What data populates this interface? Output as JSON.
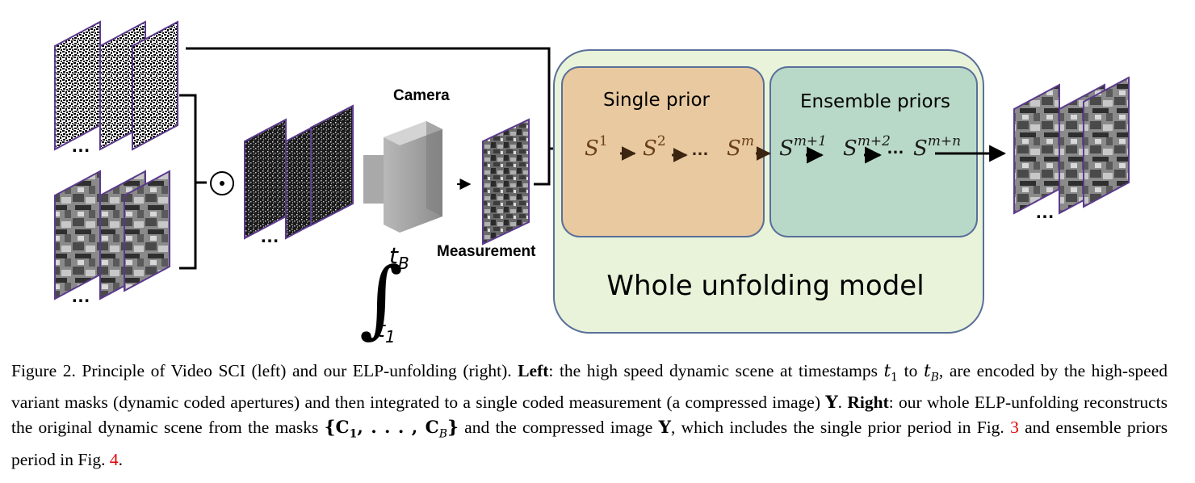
{
  "diagram": {
    "camera_label": "Camera",
    "measurement_label": "Measurement",
    "integral_upper": "t",
    "integral_upper_sub": "B",
    "integral_lower": "t",
    "integral_lower_sub": "1",
    "single_prior_title": "Single prior",
    "ensemble_priors_title": "Ensemble priors",
    "whole_model_title": "Whole unfolding model",
    "stage_s1": "S",
    "stage_s1_sup": "1",
    "stage_s2": "S",
    "stage_s2_sup": "2",
    "stage_sm": "S",
    "stage_sm_sup": "m",
    "stage_sm1": "S",
    "stage_sm1_sup": "m+1",
    "stage_sm2": "S",
    "stage_sm2_sup": "m+2",
    "stage_smn": "S",
    "stage_smn_sup": "m+n",
    "ellipsis": "…",
    "hadamard_symbol": "⊙",
    "colors": {
      "single_prior_fill": "#e8c9a0",
      "ensemble_fill": "#b9d9c8",
      "whole_fill": "#e8f3d9",
      "box_stroke": "#5a6f9a",
      "frame_border": "#5b3a8c",
      "stage_text": "#6b3f18",
      "ref": "#e00000"
    }
  },
  "caption": {
    "fig_label": "Figure 2.",
    "t1": "Principle of Video SCI (left) and our ELP-unfolding (right).",
    "left_label": "Left",
    "t2": ": the high speed dynamic scene at timestamps",
    "t1_sym": "t",
    "t1_sub": "1",
    "t3": "to",
    "tb_sym": "t",
    "tb_sub": "B",
    "t4": ", are encoded by the high-speed variant masks (dynamic coded apertures) and then integrated to a single coded measurement (a compressed image)",
    "Y": "Y",
    "t5": ".",
    "right_label": "Right",
    "t6": ": our whole ELP-unfolding reconstructs the original dynamic scene from the masks",
    "masks": "{C",
    "masks_sub1": "1",
    "masks_mid": ", . . . , C",
    "masks_subB": "B",
    "masks_end": "}",
    "t7": "and the compressed image",
    "Y2": "Y",
    "t8": ", which includes the single prior period in Fig.",
    "ref3": "3",
    "t9": "and ensemble priors period in Fig.",
    "ref4": "4",
    "t10": "."
  }
}
